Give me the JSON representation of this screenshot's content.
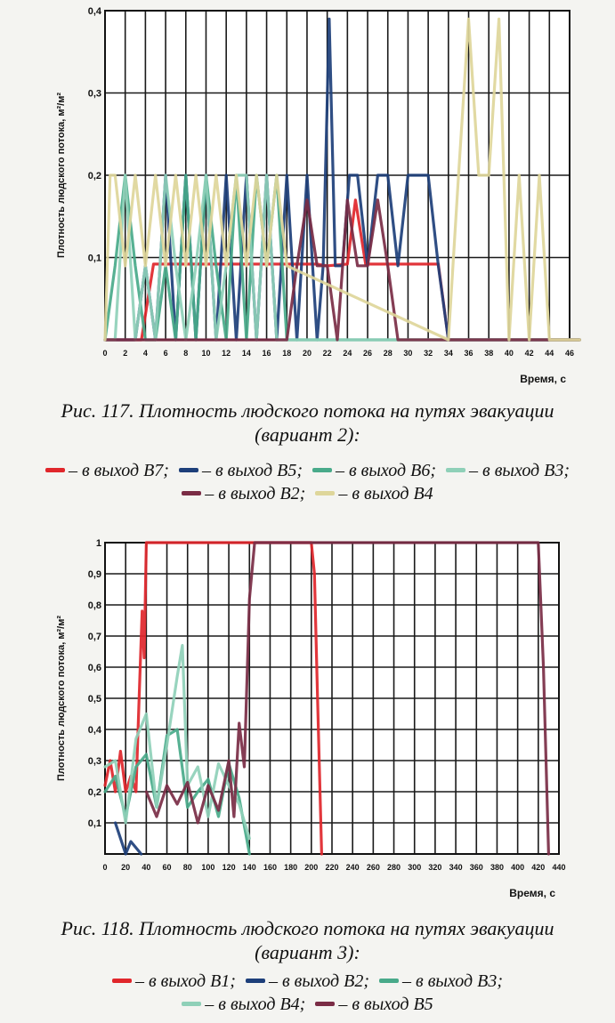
{
  "chart_data": [
    {
      "type": "line",
      "ylabel": "Плотность людского потока, м²/м²",
      "xlabel": "Время, с",
      "xlim": [
        0,
        46
      ],
      "ylim": [
        0,
        0.4
      ],
      "x_ticks": [
        "0",
        "2",
        "4",
        "6",
        "8",
        "10",
        "12",
        "14",
        "16",
        "18",
        "20",
        "22",
        "24",
        "26",
        "28",
        "30",
        "32",
        "34",
        "36",
        "38",
        "40",
        "42",
        "44",
        "46"
      ],
      "y_ticks": [
        "0,1",
        "0,2",
        "0,3",
        "0,4"
      ],
      "grid": true,
      "series": [
        {
          "name": "в выход В7",
          "color": "#e0262b",
          "x": [
            0,
            3.6,
            4.8,
            13.5,
            14.6,
            18.4,
            19.8,
            21,
            22,
            24,
            24.8,
            25.8,
            27.5,
            28.6,
            33,
            34,
            47
          ],
          "y": [
            0,
            0,
            0.092,
            0.092,
            0.092,
            0.092,
            0.092,
            0.092,
            0.09,
            0.092,
            0.17,
            0.092,
            0.092,
            0.092,
            0.092,
            0,
            0
          ]
        },
        {
          "name": "в выход В5",
          "color": "#1d3f7a",
          "x": [
            0,
            3,
            4,
            5,
            6,
            7,
            8,
            9,
            10,
            11,
            12,
            13,
            14,
            15,
            16,
            17,
            18,
            19,
            20,
            21,
            21.6,
            22.2,
            22.8,
            23.5,
            24.2,
            25,
            26,
            27,
            28,
            29,
            30,
            31,
            32,
            33,
            34,
            35,
            47
          ],
          "y": [
            0,
            0,
            0.09,
            0,
            0.2,
            0,
            0.2,
            0,
            0.2,
            0,
            0.2,
            0,
            0.2,
            0,
            0.2,
            0,
            0.2,
            0,
            0.2,
            0,
            0.09,
            0.39,
            0.09,
            0.09,
            0.2,
            0.2,
            0.09,
            0.2,
            0.2,
            0.09,
            0.2,
            0.2,
            0.2,
            0.09,
            0,
            0,
            0
          ]
        },
        {
          "name": "в выход В6",
          "color": "#49aa8a",
          "x": [
            0,
            1,
            2,
            3,
            4,
            5,
            6,
            7,
            8,
            9,
            10,
            11,
            12,
            13,
            14,
            15,
            16,
            17,
            18,
            19,
            20,
            21,
            47
          ],
          "y": [
            0,
            0.09,
            0.2,
            0.09,
            0,
            0,
            0.09,
            0,
            0.2,
            0,
            0.2,
            0.09,
            0,
            0.2,
            0,
            0.2,
            0.09,
            0.2,
            0,
            0,
            0,
            0,
            0
          ]
        },
        {
          "name": "в выход В3",
          "color": "#8fd0b8",
          "x": [
            0,
            1,
            2,
            3,
            4,
            5,
            6,
            7,
            8,
            9,
            10,
            11,
            12,
            13,
            14,
            15,
            16,
            17,
            18,
            19,
            20,
            47
          ],
          "y": [
            0,
            0,
            0.2,
            0,
            0.09,
            0,
            0.2,
            0.09,
            0,
            0.09,
            0.2,
            0,
            0.09,
            0.2,
            0.2,
            0,
            0.2,
            0,
            0,
            0,
            0,
            0
          ]
        },
        {
          "name": "в выход В2",
          "color": "#7a2c45",
          "x": [
            0,
            18,
            19,
            20,
            21,
            22,
            23,
            24,
            25,
            26,
            27,
            28,
            29,
            30,
            31,
            47
          ],
          "y": [
            0,
            0,
            0.09,
            0.17,
            0.09,
            0.09,
            0,
            0.17,
            0.09,
            0.09,
            0.17,
            0.09,
            0,
            0,
            0,
            0
          ]
        },
        {
          "name": "в выход В4",
          "color": "#ded69a",
          "x": [
            0,
            0.5,
            1,
            2,
            3,
            4,
            5,
            6,
            7,
            8,
            9,
            10,
            11,
            12,
            13,
            14,
            15,
            16,
            17,
            18,
            34,
            35,
            36,
            37,
            38,
            39,
            40,
            41,
            42,
            43,
            44,
            47
          ],
          "y": [
            0,
            0.2,
            0.2,
            0.09,
            0.2,
            0.09,
            0.2,
            0.09,
            0.2,
            0.09,
            0.2,
            0.09,
            0.2,
            0.09,
            0.2,
            0.09,
            0.2,
            0.09,
            0.2,
            0.09,
            0,
            0.2,
            0.39,
            0.2,
            0.2,
            0.39,
            0,
            0.2,
            0,
            0.2,
            0,
            0
          ]
        }
      ]
    },
    {
      "type": "line",
      "ylabel": "Плотность людского потока, м²/м²",
      "xlabel": "Время, с",
      "xlim": [
        0,
        440
      ],
      "ylim": [
        0,
        1
      ],
      "x_ticks": [
        "0",
        "20",
        "40",
        "60",
        "80",
        "100",
        "120",
        "140",
        "160",
        "180",
        "200",
        "220",
        "240",
        "260",
        "280",
        "300",
        "320",
        "340",
        "360",
        "380",
        "400",
        "420",
        "440"
      ],
      "y_ticks": [
        "0,1",
        "0,2",
        "0,3",
        "0,4",
        "0,5",
        "0,6",
        "0,7",
        "0,8",
        "0,9",
        "1"
      ],
      "grid": true,
      "series": [
        {
          "name": "в выход В1",
          "color": "#e0262b",
          "x": [
            0,
            5,
            10,
            15,
            20,
            25,
            30,
            33,
            36,
            38,
            40,
            44,
            200,
            203,
            206,
            210
          ],
          "y": [
            0.22,
            0.3,
            0.2,
            0.33,
            0.2,
            0.25,
            0.2,
            0.5,
            0.78,
            0.63,
            1,
            1,
            1,
            0.9,
            0.5,
            0
          ]
        },
        {
          "name": "в выход В2",
          "color": "#1d3f7a",
          "x": [
            10,
            15,
            20,
            25,
            30,
            35
          ],
          "y": [
            0.1,
            0.05,
            0,
            0.04,
            0.02,
            0
          ]
        },
        {
          "name": "в выход В3",
          "color": "#49aa8a",
          "x": [
            0,
            10,
            20,
            30,
            40,
            50,
            60,
            70,
            80,
            90,
            100,
            110,
            120,
            130,
            140
          ],
          "y": [
            0.2,
            0.25,
            0.12,
            0.28,
            0.32,
            0.15,
            0.38,
            0.4,
            0.15,
            0.2,
            0.24,
            0.12,
            0.29,
            0.18,
            0
          ]
        },
        {
          "name": "в выход В4",
          "color": "#8fd0b8",
          "x": [
            0,
            10,
            20,
            30,
            40,
            50,
            60,
            70,
            75,
            80,
            90,
            100,
            110,
            120,
            130,
            140
          ],
          "y": [
            0.28,
            0.3,
            0.1,
            0.37,
            0.45,
            0.15,
            0.35,
            0.57,
            0.67,
            0.22,
            0.28,
            0.12,
            0.29,
            0.22,
            0.16,
            0.05
          ]
        },
        {
          "name": "в выход В5",
          "color": "#7a2c45",
          "x": [
            40,
            50,
            60,
            70,
            80,
            90,
            100,
            110,
            120,
            125,
            130,
            135,
            140,
            145,
            150,
            415,
            420,
            425,
            430
          ],
          "y": [
            0.2,
            0.12,
            0.22,
            0.16,
            0.23,
            0.1,
            0.22,
            0.14,
            0.3,
            0.12,
            0.42,
            0.28,
            0.82,
            1,
            1,
            1,
            1,
            0.6,
            0
          ]
        }
      ]
    }
  ],
  "caption1": {
    "line1": "Рис. 117. Плотность людского потока на путях эвакуации",
    "line2": "(вариант 2):"
  },
  "legend1": {
    "line1": [
      {
        "text": "– в выход В7;",
        "color": "#e0262b"
      },
      {
        "text": "– в выход В5;",
        "color": "#1d3f7a"
      },
      {
        "text": "– в выход В6;",
        "color": "#49aa8a"
      },
      {
        "text": "– в выход В3;",
        "color": "#8fd0b8"
      }
    ],
    "line2": [
      {
        "text": "– в выход В2;",
        "color": "#7a2c45"
      },
      {
        "text": "– в выход В4",
        "color": "#ded69a"
      }
    ]
  },
  "caption2": {
    "line1": "Рис. 118. Плотность людского потока на путях эвакуации",
    "line2": "(вариант 3):"
  },
  "legend2": {
    "line1": [
      {
        "text": "– в выход В1;",
        "color": "#e0262b"
      },
      {
        "text": "– в выход В2;",
        "color": "#1d3f7a"
      },
      {
        "text": "– в выход В3;",
        "color": "#49aa8a"
      }
    ],
    "line2": [
      {
        "text": "– в выход В4;",
        "color": "#8fd0b8"
      },
      {
        "text": "– в выход В5",
        "color": "#7a2c45"
      }
    ]
  }
}
